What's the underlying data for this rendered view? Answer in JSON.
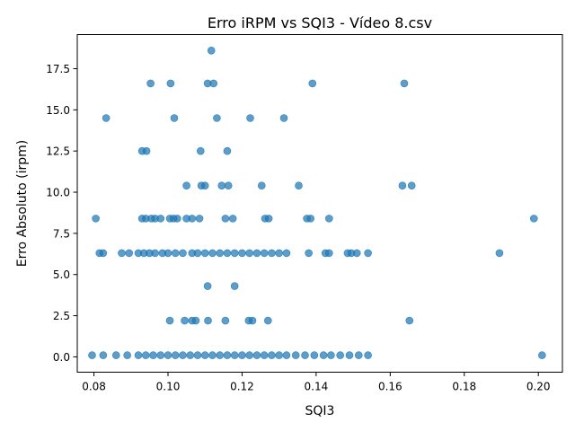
{
  "chart_data": {
    "type": "scatter",
    "title": "Erro iRPM vs SQI3 - Vídeo 8.csv",
    "xlabel": "SQI3",
    "ylabel": "Erro Absoluto (irpm)",
    "xlim": [
      0.0755,
      0.2065
    ],
    "ylim": [
      -0.93,
      19.57
    ],
    "xticks": [
      0.08,
      0.1,
      0.12,
      0.14,
      0.16,
      0.18,
      0.2
    ],
    "xtick_labels": [
      "0.08",
      "0.10",
      "0.12",
      "0.14",
      "0.16",
      "0.18",
      "0.20"
    ],
    "yticks": [
      0.0,
      2.5,
      5.0,
      7.5,
      10.0,
      12.5,
      15.0,
      17.5
    ],
    "ytick_labels": [
      "0.0",
      "2.5",
      "5.0",
      "7.5",
      "10.0",
      "12.5",
      "15.0",
      "17.5"
    ],
    "grid": false,
    "marker_color": "#1f77b4",
    "points": [
      {
        "x": 0.1117,
        "y": 18.6
      },
      {
        "x": 0.0953,
        "y": 16.6
      },
      {
        "x": 0.1007,
        "y": 16.6
      },
      {
        "x": 0.1107,
        "y": 16.6
      },
      {
        "x": 0.1123,
        "y": 16.6
      },
      {
        "x": 0.139,
        "y": 16.6
      },
      {
        "x": 0.1638,
        "y": 16.6
      },
      {
        "x": 0.0833,
        "y": 14.5
      },
      {
        "x": 0.1017,
        "y": 14.5
      },
      {
        "x": 0.1132,
        "y": 14.5
      },
      {
        "x": 0.1222,
        "y": 14.5
      },
      {
        "x": 0.1313,
        "y": 14.5
      },
      {
        "x": 0.093,
        "y": 12.5
      },
      {
        "x": 0.0942,
        "y": 12.5
      },
      {
        "x": 0.1088,
        "y": 12.5
      },
      {
        "x": 0.116,
        "y": 12.5
      },
      {
        "x": 0.105,
        "y": 10.4
      },
      {
        "x": 0.109,
        "y": 10.4
      },
      {
        "x": 0.11,
        "y": 10.4
      },
      {
        "x": 0.1145,
        "y": 10.4
      },
      {
        "x": 0.1163,
        "y": 10.4
      },
      {
        "x": 0.1253,
        "y": 10.4
      },
      {
        "x": 0.1353,
        "y": 10.4
      },
      {
        "x": 0.1633,
        "y": 10.4
      },
      {
        "x": 0.1658,
        "y": 10.4
      },
      {
        "x": 0.0805,
        "y": 8.4
      },
      {
        "x": 0.093,
        "y": 8.4
      },
      {
        "x": 0.094,
        "y": 8.4
      },
      {
        "x": 0.0955,
        "y": 8.4
      },
      {
        "x": 0.0965,
        "y": 8.4
      },
      {
        "x": 0.098,
        "y": 8.4
      },
      {
        "x": 0.1005,
        "y": 8.4
      },
      {
        "x": 0.1015,
        "y": 8.4
      },
      {
        "x": 0.1025,
        "y": 8.4
      },
      {
        "x": 0.105,
        "y": 8.4
      },
      {
        "x": 0.1065,
        "y": 8.4
      },
      {
        "x": 0.1085,
        "y": 8.4
      },
      {
        "x": 0.1155,
        "y": 8.4
      },
      {
        "x": 0.1175,
        "y": 8.4
      },
      {
        "x": 0.1262,
        "y": 8.4
      },
      {
        "x": 0.1272,
        "y": 8.4
      },
      {
        "x": 0.1375,
        "y": 8.4
      },
      {
        "x": 0.1385,
        "y": 8.4
      },
      {
        "x": 0.1435,
        "y": 8.4
      },
      {
        "x": 0.1988,
        "y": 8.4
      },
      {
        "x": 0.0815,
        "y": 6.3
      },
      {
        "x": 0.0825,
        "y": 6.3
      },
      {
        "x": 0.0875,
        "y": 6.3
      },
      {
        "x": 0.0895,
        "y": 6.3
      },
      {
        "x": 0.092,
        "y": 6.3
      },
      {
        "x": 0.0935,
        "y": 6.3
      },
      {
        "x": 0.095,
        "y": 6.3
      },
      {
        "x": 0.0965,
        "y": 6.3
      },
      {
        "x": 0.0985,
        "y": 6.3
      },
      {
        "x": 0.1,
        "y": 6.3
      },
      {
        "x": 0.102,
        "y": 6.3
      },
      {
        "x": 0.104,
        "y": 6.3
      },
      {
        "x": 0.1065,
        "y": 6.3
      },
      {
        "x": 0.108,
        "y": 6.3
      },
      {
        "x": 0.11,
        "y": 6.3
      },
      {
        "x": 0.112,
        "y": 6.3
      },
      {
        "x": 0.114,
        "y": 6.3
      },
      {
        "x": 0.116,
        "y": 6.3
      },
      {
        "x": 0.118,
        "y": 6.3
      },
      {
        "x": 0.12,
        "y": 6.3
      },
      {
        "x": 0.122,
        "y": 6.3
      },
      {
        "x": 0.124,
        "y": 6.3
      },
      {
        "x": 0.126,
        "y": 6.3
      },
      {
        "x": 0.128,
        "y": 6.3
      },
      {
        "x": 0.13,
        "y": 6.3
      },
      {
        "x": 0.132,
        "y": 6.3
      },
      {
        "x": 0.138,
        "y": 6.3
      },
      {
        "x": 0.1425,
        "y": 6.3
      },
      {
        "x": 0.1435,
        "y": 6.3
      },
      {
        "x": 0.1485,
        "y": 6.3
      },
      {
        "x": 0.1495,
        "y": 6.3
      },
      {
        "x": 0.151,
        "y": 6.3
      },
      {
        "x": 0.154,
        "y": 6.3
      },
      {
        "x": 0.1895,
        "y": 6.3
      },
      {
        "x": 0.1107,
        "y": 4.3
      },
      {
        "x": 0.118,
        "y": 4.3
      },
      {
        "x": 0.1005,
        "y": 2.2
      },
      {
        "x": 0.1045,
        "y": 2.2
      },
      {
        "x": 0.1065,
        "y": 2.2
      },
      {
        "x": 0.1075,
        "y": 2.2
      },
      {
        "x": 0.1108,
        "y": 2.2
      },
      {
        "x": 0.1155,
        "y": 2.2
      },
      {
        "x": 0.1218,
        "y": 2.2
      },
      {
        "x": 0.1228,
        "y": 2.2
      },
      {
        "x": 0.127,
        "y": 2.2
      },
      {
        "x": 0.1652,
        "y": 2.2
      },
      {
        "x": 0.0795,
        "y": 0.1
      },
      {
        "x": 0.0825,
        "y": 0.1
      },
      {
        "x": 0.086,
        "y": 0.1
      },
      {
        "x": 0.089,
        "y": 0.1
      },
      {
        "x": 0.092,
        "y": 0.1
      },
      {
        "x": 0.094,
        "y": 0.1
      },
      {
        "x": 0.096,
        "y": 0.1
      },
      {
        "x": 0.098,
        "y": 0.1
      },
      {
        "x": 0.1,
        "y": 0.1
      },
      {
        "x": 0.102,
        "y": 0.1
      },
      {
        "x": 0.104,
        "y": 0.1
      },
      {
        "x": 0.106,
        "y": 0.1
      },
      {
        "x": 0.108,
        "y": 0.1
      },
      {
        "x": 0.11,
        "y": 0.1
      },
      {
        "x": 0.112,
        "y": 0.1
      },
      {
        "x": 0.114,
        "y": 0.1
      },
      {
        "x": 0.116,
        "y": 0.1
      },
      {
        "x": 0.118,
        "y": 0.1
      },
      {
        "x": 0.12,
        "y": 0.1
      },
      {
        "x": 0.122,
        "y": 0.1
      },
      {
        "x": 0.124,
        "y": 0.1
      },
      {
        "x": 0.126,
        "y": 0.1
      },
      {
        "x": 0.128,
        "y": 0.1
      },
      {
        "x": 0.13,
        "y": 0.1
      },
      {
        "x": 0.132,
        "y": 0.1
      },
      {
        "x": 0.1345,
        "y": 0.1
      },
      {
        "x": 0.137,
        "y": 0.1
      },
      {
        "x": 0.1395,
        "y": 0.1
      },
      {
        "x": 0.142,
        "y": 0.1
      },
      {
        "x": 0.144,
        "y": 0.1
      },
      {
        "x": 0.1465,
        "y": 0.1
      },
      {
        "x": 0.149,
        "y": 0.1
      },
      {
        "x": 0.1515,
        "y": 0.1
      },
      {
        "x": 0.154,
        "y": 0.1
      },
      {
        "x": 0.201,
        "y": 0.1
      }
    ]
  }
}
